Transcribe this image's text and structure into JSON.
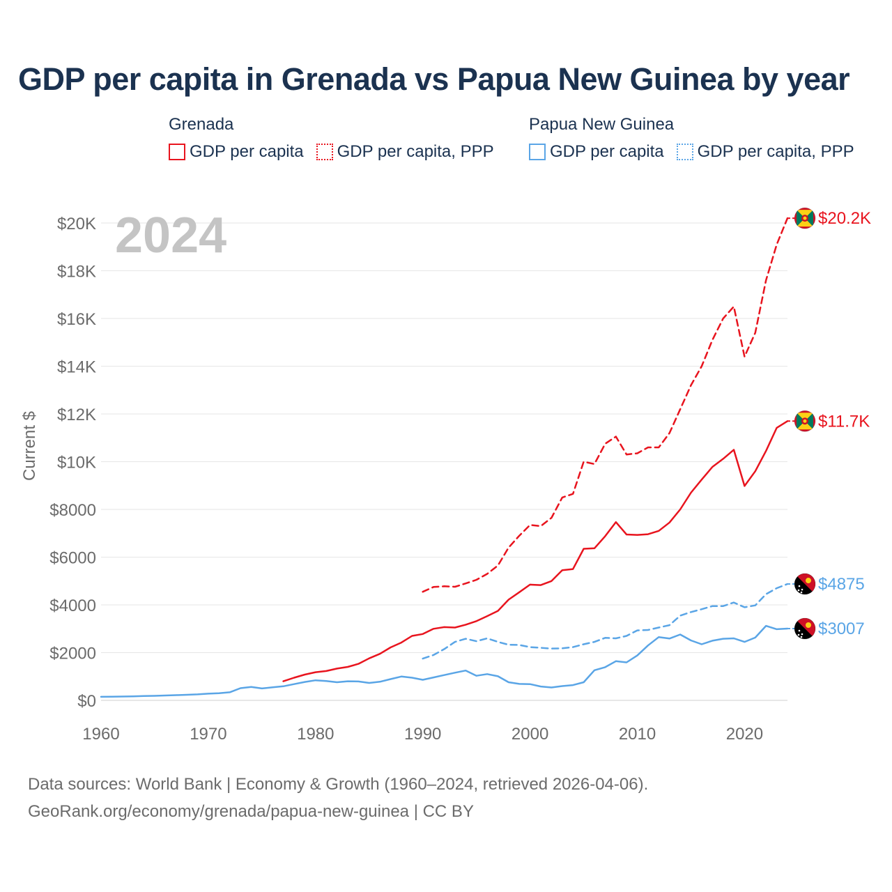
{
  "title": "GDP per capita in Grenada vs Papua New Guinea by year",
  "legend": {
    "groups": [
      {
        "name": "Grenada",
        "color": "#e8141e",
        "items": [
          {
            "label": "GDP per capita",
            "style": "solid"
          },
          {
            "label": "GDP per capita, PPP",
            "style": "dotted"
          }
        ]
      },
      {
        "name": "Papua New Guinea",
        "color": "#5aa5e6",
        "items": [
          {
            "label": "GDP per capita",
            "style": "solid"
          },
          {
            "label": "GDP per capita, PPP",
            "style": "dotted"
          }
        ]
      }
    ]
  },
  "footer": {
    "line1": "Data sources: World Bank | Economy & Growth (1960–2024, retrieved 2026-04-06).",
    "line2": "GeoRank.org/economy/grenada/papua-new-guinea | CC BY"
  },
  "chart_data": {
    "type": "line",
    "title": "GDP per capita in Grenada vs Papua New Guinea by year",
    "year_label": "2024",
    "xlabel": "",
    "ylabel": "Current $",
    "xlim": [
      1960,
      2024
    ],
    "ylim": [
      0,
      20000
    ],
    "x_ticks": [
      1960,
      1970,
      1980,
      1990,
      2000,
      2010,
      2020
    ],
    "y_ticks": [
      {
        "value": 0,
        "label": "$0"
      },
      {
        "value": 2000,
        "label": "$2000"
      },
      {
        "value": 4000,
        "label": "$4000"
      },
      {
        "value": 6000,
        "label": "$6000"
      },
      {
        "value": 8000,
        "label": "$8000"
      },
      {
        "value": 10000,
        "label": "$10K"
      },
      {
        "value": 12000,
        "label": "$12K"
      },
      {
        "value": 14000,
        "label": "$14K"
      },
      {
        "value": 16000,
        "label": "$16K"
      },
      {
        "value": 18000,
        "label": "$18K"
      },
      {
        "value": 20000,
        "label": "$20K"
      }
    ],
    "grid": true,
    "series": [
      {
        "name": "Grenada GDP per capita, PPP",
        "country": "Grenada",
        "color": "#e8141e",
        "dash": true,
        "end_label": "$20.2K",
        "x": [
          1990,
          1991,
          1992,
          1993,
          1994,
          1995,
          1996,
          1997,
          1998,
          1999,
          2000,
          2001,
          2002,
          2003,
          2004,
          2005,
          2006,
          2007,
          2008,
          2009,
          2010,
          2011,
          2012,
          2013,
          2014,
          2015,
          2016,
          2017,
          2018,
          2019,
          2020,
          2021,
          2022,
          2023,
          2024
        ],
        "values": [
          4550,
          4750,
          4780,
          4760,
          4900,
          5050,
          5300,
          5650,
          6400,
          6900,
          7350,
          7300,
          7650,
          8500,
          8650,
          10000,
          9900,
          10750,
          11050,
          10300,
          10350,
          10600,
          10600,
          11200,
          12200,
          13200,
          14000,
          15100,
          16000,
          16500,
          14400,
          15400,
          17600,
          19100,
          20200
        ]
      },
      {
        "name": "Grenada GDP per capita",
        "country": "Grenada",
        "color": "#e8141e",
        "dash": false,
        "end_label": "$11.7K",
        "x": [
          1977,
          1978,
          1979,
          1980,
          1981,
          1982,
          1983,
          1984,
          1985,
          1986,
          1987,
          1988,
          1989,
          1990,
          1991,
          1992,
          1993,
          1994,
          1995,
          1996,
          1997,
          1998,
          1999,
          2000,
          2001,
          2002,
          2003,
          2004,
          2005,
          2006,
          2007,
          2008,
          2009,
          2010,
          2011,
          2012,
          2013,
          2014,
          2015,
          2016,
          2017,
          2018,
          2019,
          2020,
          2021,
          2022,
          2023,
          2024
        ],
        "values": [
          800,
          950,
          1080,
          1180,
          1230,
          1330,
          1400,
          1530,
          1760,
          1950,
          2220,
          2420,
          2700,
          2780,
          3000,
          3070,
          3050,
          3170,
          3320,
          3530,
          3750,
          4220,
          4530,
          4850,
          4830,
          5000,
          5450,
          5500,
          6350,
          6370,
          6880,
          7470,
          6950,
          6930,
          6960,
          7100,
          7450,
          8000,
          8700,
          9250,
          9780,
          10120,
          10500,
          8980,
          9600,
          10450,
          11420,
          11700
        ]
      },
      {
        "name": "Papua New Guinea GDP per capita, PPP",
        "country": "Papua New Guinea",
        "color": "#5aa5e6",
        "dash": true,
        "end_label": "$4875",
        "x": [
          1990,
          1991,
          1992,
          1993,
          1994,
          1995,
          1996,
          1997,
          1998,
          1999,
          2000,
          2001,
          2002,
          2003,
          2004,
          2005,
          2006,
          2007,
          2008,
          2009,
          2010,
          2011,
          2012,
          2013,
          2014,
          2015,
          2016,
          2017,
          2018,
          2019,
          2020,
          2021,
          2022,
          2023,
          2024
        ],
        "values": [
          1750,
          1900,
          2150,
          2450,
          2580,
          2480,
          2600,
          2450,
          2330,
          2320,
          2230,
          2200,
          2170,
          2180,
          2230,
          2350,
          2450,
          2620,
          2600,
          2700,
          2930,
          2950,
          3050,
          3150,
          3550,
          3700,
          3820,
          3950,
          3950,
          4100,
          3900,
          3980,
          4450,
          4700,
          4875
        ]
      },
      {
        "name": "Papua New Guinea GDP per capita",
        "country": "Papua New Guinea",
        "color": "#5aa5e6",
        "dash": false,
        "end_label": "$3007",
        "x": [
          1960,
          1961,
          1962,
          1963,
          1964,
          1965,
          1966,
          1967,
          1968,
          1969,
          1970,
          1971,
          1972,
          1973,
          1974,
          1975,
          1976,
          1977,
          1978,
          1979,
          1980,
          1981,
          1982,
          1983,
          1984,
          1985,
          1986,
          1987,
          1988,
          1989,
          1990,
          1991,
          1992,
          1993,
          1994,
          1995,
          1996,
          1997,
          1998,
          1999,
          2000,
          2001,
          2002,
          2003,
          2004,
          2005,
          2006,
          2007,
          2008,
          2009,
          2010,
          2011,
          2012,
          2013,
          2014,
          2015,
          2016,
          2017,
          2018,
          2019,
          2020,
          2021,
          2022,
          2023,
          2024
        ],
        "values": [
          150,
          155,
          160,
          170,
          180,
          190,
          205,
          220,
          235,
          250,
          280,
          300,
          340,
          510,
          560,
          500,
          550,
          590,
          680,
          770,
          840,
          810,
          760,
          800,
          790,
          730,
          780,
          890,
          1000,
          950,
          860,
          960,
          1060,
          1160,
          1250,
          1030,
          1100,
          1010,
          760,
          690,
          680,
          580,
          540,
          600,
          640,
          760,
          1260,
          1390,
          1640,
          1590,
          1880,
          2300,
          2650,
          2590,
          2760,
          2510,
          2350,
          2500,
          2580,
          2600,
          2450,
          2630,
          3120,
          2980,
          3007
        ]
      }
    ]
  }
}
